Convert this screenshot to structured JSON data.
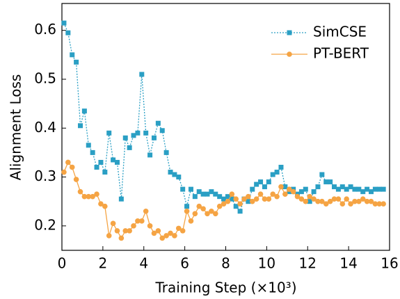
{
  "chart_data": {
    "type": "line",
    "x_label": "Training Step (×10³)",
    "y_label": "Alignment Loss",
    "x": [
      0.1,
      0.3,
      0.5,
      0.7,
      0.9,
      1.1,
      1.3,
      1.5,
      1.7,
      1.9,
      2.1,
      2.3,
      2.5,
      2.7,
      2.9,
      3.1,
      3.3,
      3.5,
      3.7,
      3.9,
      4.1,
      4.3,
      4.5,
      4.7,
      4.9,
      5.1,
      5.3,
      5.5,
      5.7,
      5.9,
      6.1,
      6.3,
      6.5,
      6.7,
      6.9,
      7.1,
      7.3,
      7.5,
      7.7,
      7.9,
      8.1,
      8.3,
      8.5,
      8.7,
      8.9,
      9.1,
      9.3,
      9.5,
      9.7,
      9.9,
      10.1,
      10.3,
      10.5,
      10.7,
      10.9,
      11.1,
      11.3,
      11.5,
      11.7,
      11.9,
      12.1,
      12.3,
      12.5,
      12.7,
      12.9,
      13.1,
      13.3,
      13.5,
      13.7,
      13.9,
      14.1,
      14.3,
      14.5,
      14.7,
      14.9,
      15.1,
      15.3,
      15.5,
      15.7
    ],
    "series": [
      {
        "name": "SimCSE",
        "color": "#2a9fc4",
        "marker": "square",
        "dashed": true,
        "values": [
          0.615,
          0.595,
          0.55,
          0.535,
          0.405,
          0.435,
          0.365,
          0.35,
          0.32,
          0.33,
          0.31,
          0.39,
          0.335,
          0.33,
          0.255,
          0.38,
          0.36,
          0.385,
          0.39,
          0.51,
          0.39,
          0.345,
          0.38,
          0.41,
          0.395,
          0.35,
          0.31,
          0.305,
          0.3,
          0.275,
          0.24,
          0.275,
          0.26,
          0.27,
          0.265,
          0.265,
          0.27,
          0.265,
          0.26,
          0.255,
          0.26,
          0.255,
          0.24,
          0.23,
          0.255,
          0.25,
          0.275,
          0.285,
          0.29,
          0.28,
          0.29,
          0.305,
          0.31,
          0.32,
          0.28,
          0.27,
          0.275,
          0.265,
          0.27,
          0.275,
          0.25,
          0.27,
          0.28,
          0.305,
          0.29,
          0.29,
          0.28,
          0.275,
          0.28,
          0.275,
          0.28,
          0.275,
          0.275,
          0.27,
          0.275,
          0.27,
          0.275,
          0.275,
          0.275
        ]
      },
      {
        "name": "PT-BERT",
        "color": "#f5a444",
        "marker": "circle",
        "dashed": false,
        "values": [
          0.31,
          0.33,
          0.32,
          0.295,
          0.27,
          0.26,
          0.26,
          0.26,
          0.265,
          0.245,
          0.24,
          0.18,
          0.205,
          0.19,
          0.175,
          0.19,
          0.19,
          0.2,
          0.21,
          0.21,
          0.23,
          0.2,
          0.185,
          0.19,
          0.175,
          0.18,
          0.185,
          0.18,
          0.195,
          0.19,
          0.23,
          0.21,
          0.225,
          0.24,
          0.235,
          0.225,
          0.23,
          0.225,
          0.24,
          0.245,
          0.25,
          0.265,
          0.255,
          0.245,
          0.255,
          0.26,
          0.25,
          0.255,
          0.265,
          0.255,
          0.255,
          0.265,
          0.26,
          0.28,
          0.265,
          0.275,
          0.27,
          0.26,
          0.255,
          0.25,
          0.26,
          0.255,
          0.25,
          0.25,
          0.245,
          0.25,
          0.255,
          0.255,
          0.245,
          0.255,
          0.245,
          0.25,
          0.25,
          0.255,
          0.25,
          0.25,
          0.245,
          0.245,
          0.245
        ]
      }
    ],
    "xlim": [
      0,
      16
    ],
    "xticks": [
      0,
      2,
      4,
      6,
      8,
      10,
      12,
      14,
      16
    ],
    "ylim": [
      0.15,
      0.655
    ],
    "yticks": [
      0.2,
      0.3,
      0.4,
      0.5,
      0.6
    ],
    "legend": "upper right"
  }
}
